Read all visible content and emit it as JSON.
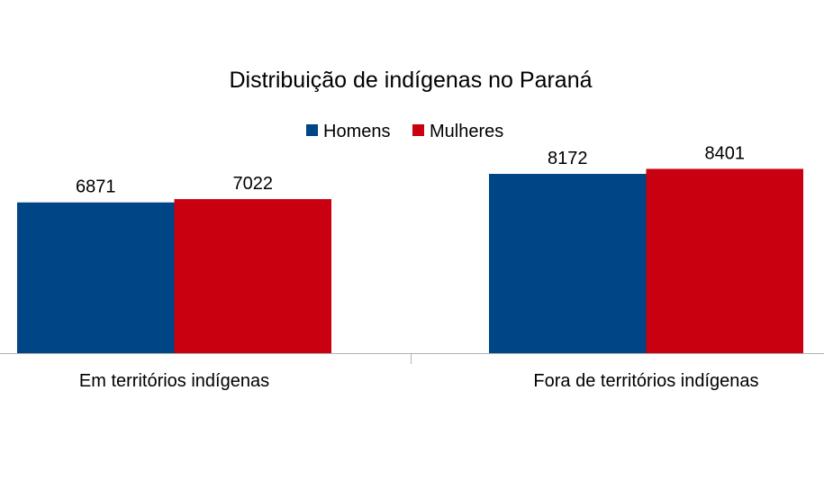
{
  "chart_data": {
    "type": "bar",
    "title": "Distribuição de indígenas no Paraná",
    "xlabel": "",
    "ylabel": "",
    "categories": [
      "Em territórios indígenas",
      "Fora de territórios indígenas"
    ],
    "series": [
      {
        "name": "Homens",
        "values": [
          6871,
          8172
        ],
        "color": "#004586"
      },
      {
        "name": "Mulheres",
        "values": [
          7022,
          8401
        ],
        "color": "#c9000f"
      }
    ],
    "ylim": [
      0,
      9000
    ],
    "grid": false,
    "legend": "top-center",
    "data_labels": true
  }
}
